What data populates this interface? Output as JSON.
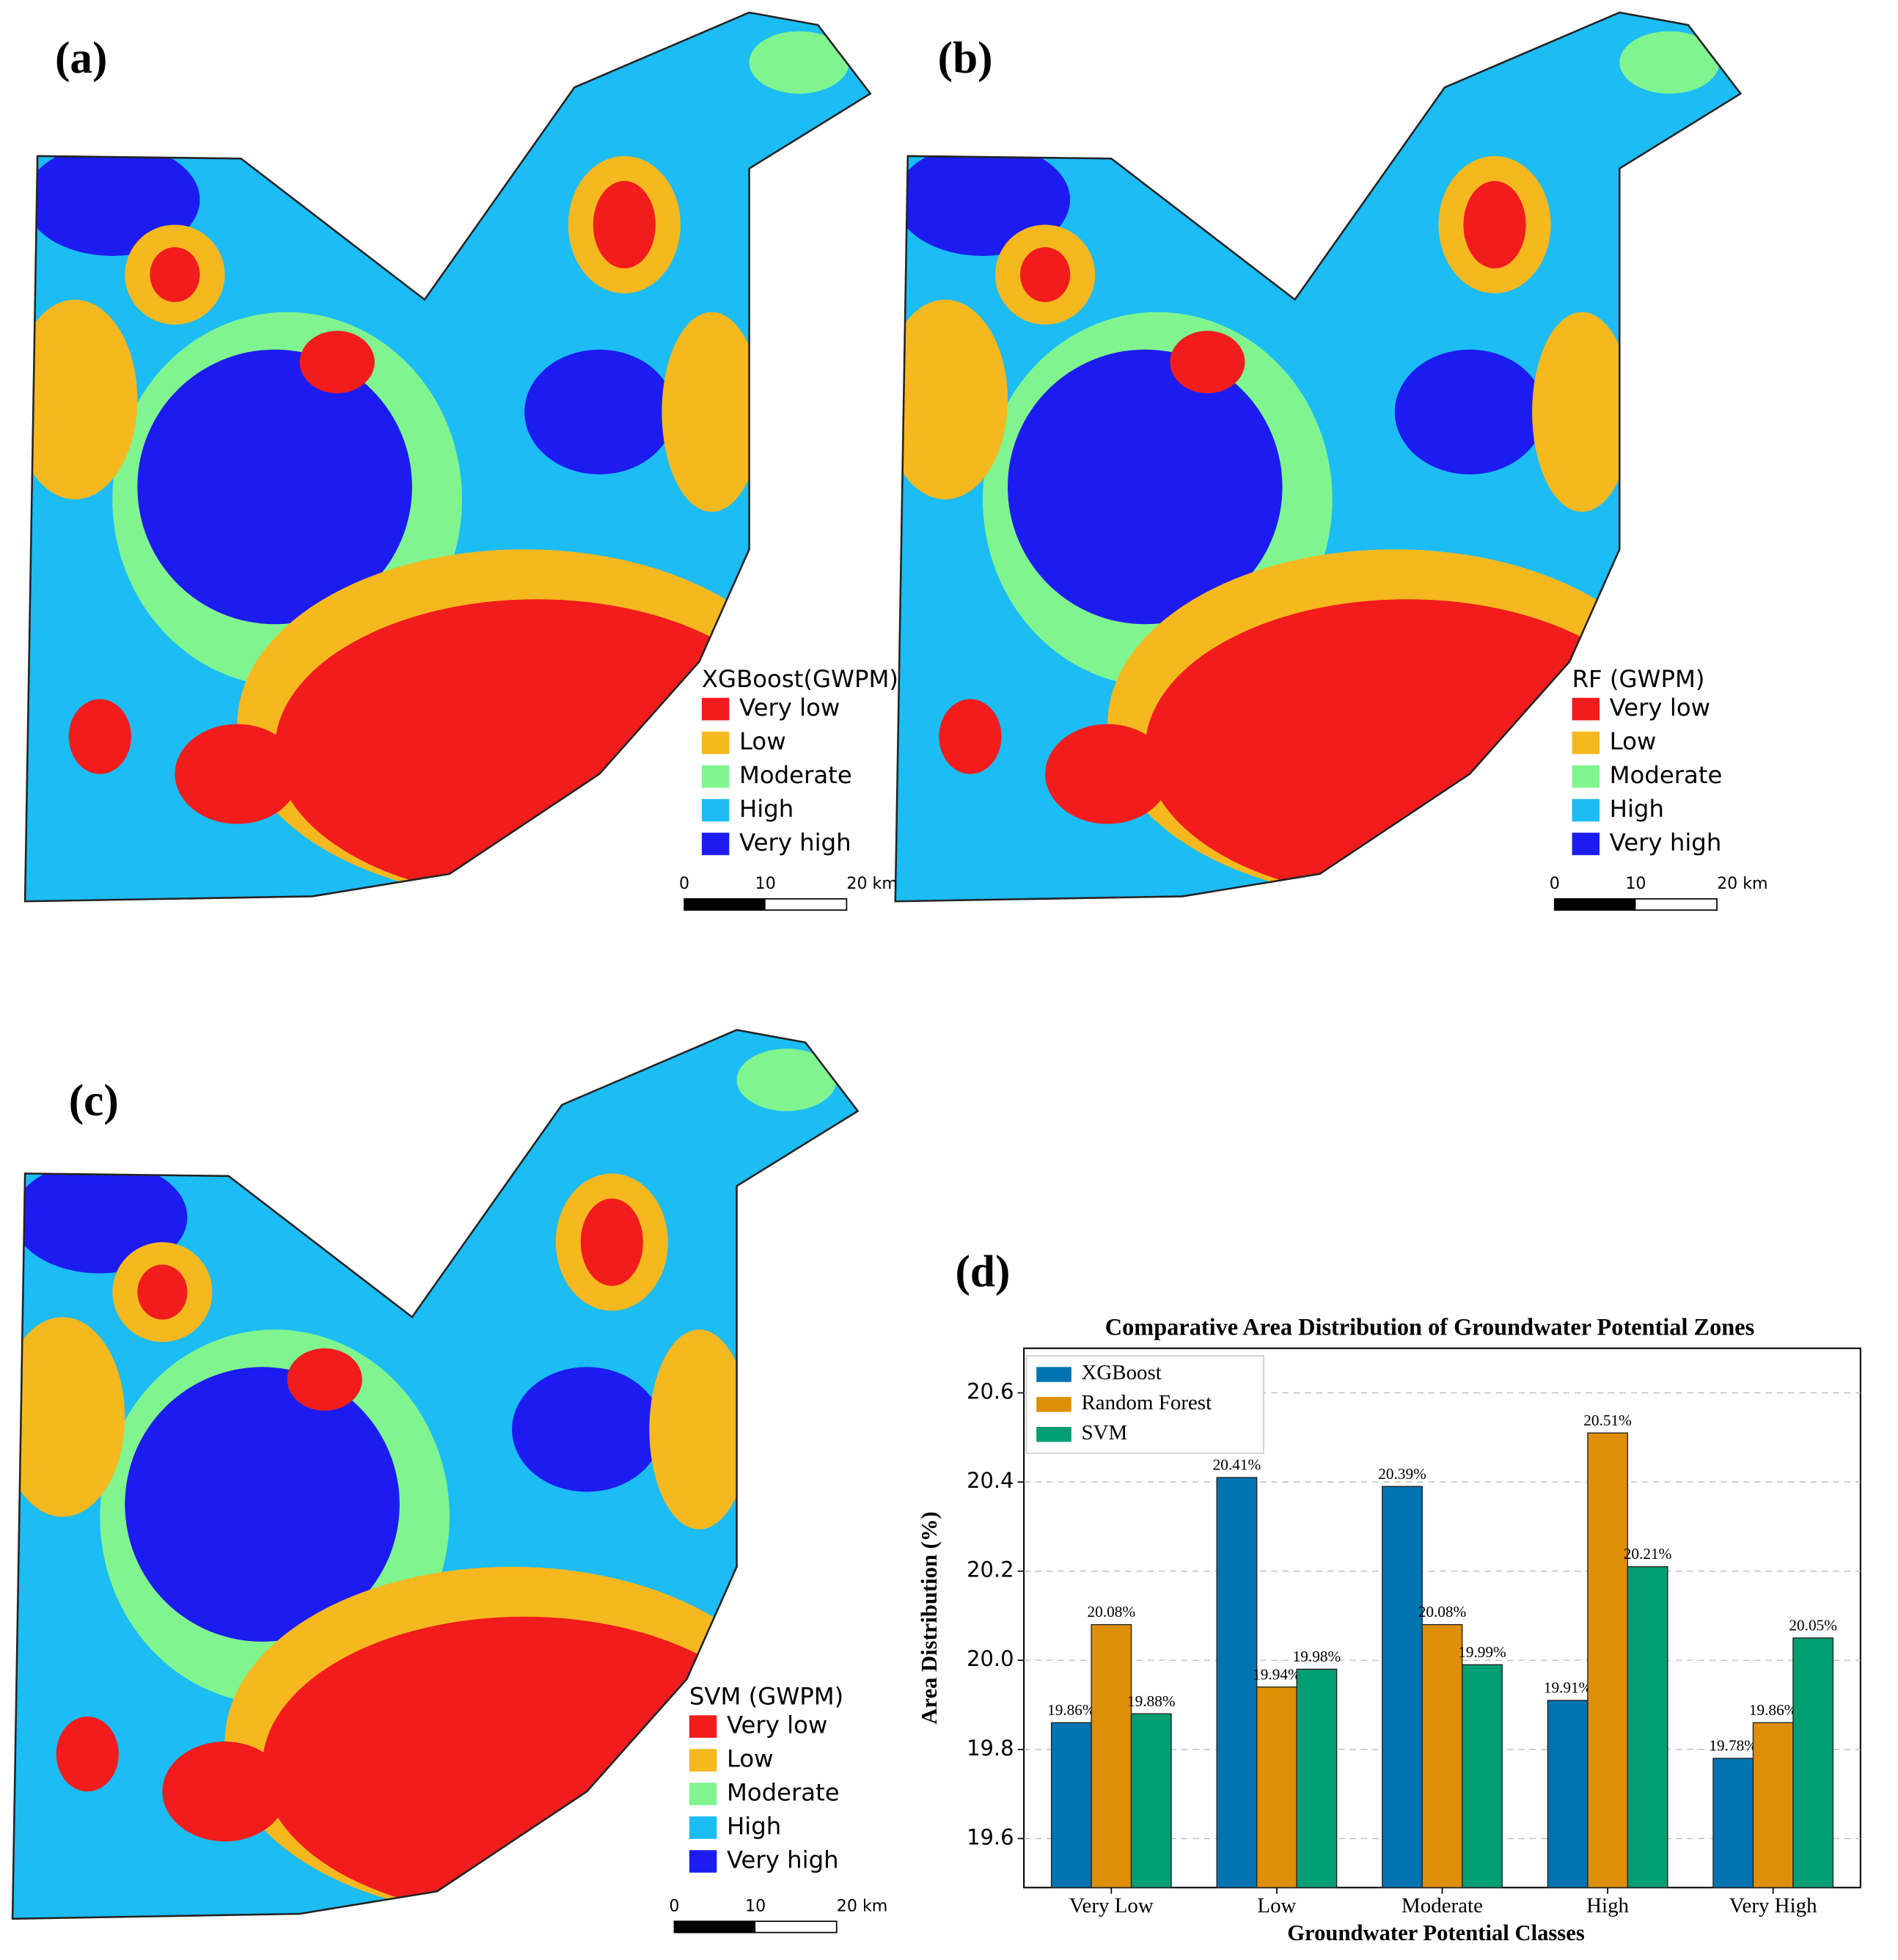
{
  "maps": [
    {
      "label": "(a)",
      "legend_title": "XGBoost(GWPM)",
      "legend": [
        "Very low",
        "Low",
        "Moderate",
        "High",
        "Very high"
      ],
      "scale": [
        "0",
        "10",
        "20 km"
      ]
    },
    {
      "label": "(b)",
      "legend_title": "RF (GWPM)",
      "legend": [
        "Very low",
        "Low",
        "Moderate",
        "High",
        "Very high"
      ],
      "scale": [
        "0",
        "10",
        "20 km"
      ]
    },
    {
      "label": "(c)",
      "legend_title": "SVM (GWPM)",
      "legend": [
        "Very low",
        "Low",
        "Moderate",
        "High",
        "Very high"
      ],
      "scale": [
        "0",
        "10",
        "20 km"
      ]
    }
  ],
  "class_colors": [
    "#f21c1c",
    "#f5b81f",
    "#80f58f",
    "#1cbcf5",
    "#1c1cf0"
  ],
  "chart_label": "(d)",
  "chart_data": {
    "type": "bar",
    "title": "Comparative Area Distribution of Groundwater Potential Zones",
    "x_label": "Groundwater Potential Classes",
    "y_label": "Area Distribution (%)",
    "categories": [
      "Very Low",
      "Low",
      "Moderate",
      "High",
      "Very High"
    ],
    "series": [
      {
        "name": "XGBoost",
        "color": "#0173b2",
        "values": [
          19.86,
          20.41,
          20.39,
          19.91,
          19.78
        ],
        "value_labels": [
          "19.86%",
          "20.41%",
          "20.39%",
          "19.91%",
          "19.78%"
        ]
      },
      {
        "name": "Random Forest",
        "color": "#de8f05",
        "values": [
          20.08,
          19.94,
          20.08,
          20.51,
          19.86
        ],
        "value_labels": [
          "20.08%",
          "19.94%",
          "20.08%",
          "20.51%",
          "19.86%"
        ]
      },
      {
        "name": "SVM",
        "color": "#029e73",
        "values": [
          19.88,
          19.98,
          19.99,
          20.21,
          20.05
        ],
        "value_labels": [
          "19.88%",
          "19.98%",
          "19.99%",
          "20.21%",
          "20.05%"
        ]
      }
    ],
    "ylim": [
      19.49,
      20.7
    ],
    "yticks": [
      19.6,
      19.8,
      {
        "value": 20,
        "label": "20.0"
      },
      20.2,
      20.4,
      20.6
    ],
    "grid": true,
    "legend": "upper left"
  }
}
